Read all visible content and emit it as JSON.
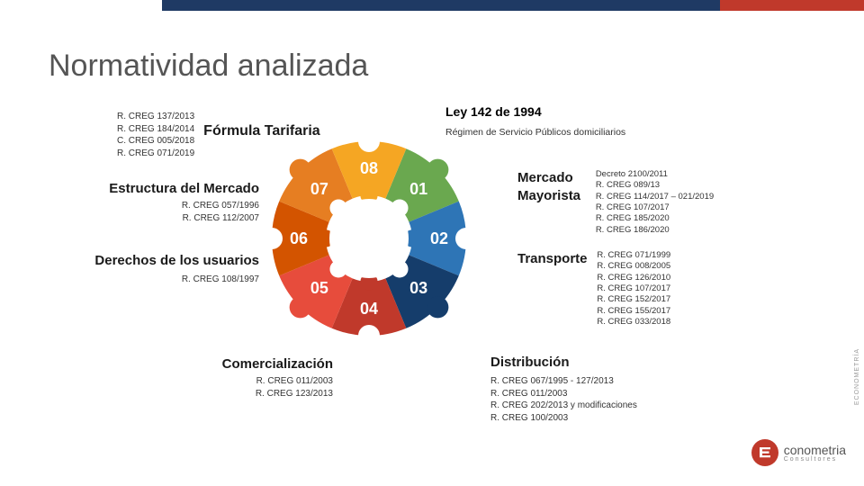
{
  "title": "Normatividad analizada",
  "topbar": {
    "navy": "#1f3a64",
    "red": "#c0392b"
  },
  "segments": {
    "s01": {
      "num": "01",
      "color": "#6aa84f",
      "title": "Ley 142 de 1994",
      "subtitle": "Régimen  de Servicio Públicos domiciliarios"
    },
    "s02": {
      "num": "02",
      "color": "#2e75b6",
      "title": "Mercado\nMayorista",
      "refs": [
        "Decreto 2100/2011",
        "R. CREG 089/13",
        "R. CREG 114/2017 – 021/2019",
        "R. CREG 107/2017",
        "R. CREG 185/2020",
        "R. CREG 186/2020"
      ]
    },
    "s03": {
      "num": "03",
      "color": "#153d6b",
      "title": "Transporte",
      "refs": [
        "R. CREG 071/1999",
        "R. CREG 008/2005",
        "R. CREG 126/2010",
        "R. CREG 107/2017",
        "R. CREG 152/2017",
        "R. CREG 155/2017",
        "R. CREG 033/2018"
      ]
    },
    "s04": {
      "num": "04",
      "color": "#c0392b",
      "title": "Distribución",
      "refs": [
        "R. CREG 067/1995 -  127/2013",
        "R. CREG 011/2003",
        "R. CREG 202/2013 y modificaciones",
        "R. CREG 100/2003"
      ]
    },
    "s05": {
      "num": "05",
      "color": "#e74c3c",
      "title": "Comercialización",
      "refs": [
        "R. CREG 011/2003",
        "R. CREG 123/2013"
      ]
    },
    "s06": {
      "num": "06",
      "color": "#d35400",
      "title": "Derechos de los usuarios",
      "refs": [
        "R. CREG 108/1997"
      ]
    },
    "s07": {
      "num": "07",
      "color": "#e67e22",
      "title": "Estructura del Mercado",
      "refs": [
        "R. CREG 057/1996",
        "R. CREG 112/2007"
      ]
    },
    "s08": {
      "num": "08",
      "color": "#f5a623",
      "title": "Fórmula Tarifaria",
      "refs": [
        "R. CREG 137/2013",
        "R. CREG 184/2014",
        "C. CREG 005/2018",
        "R. CREG 071/2019"
      ]
    }
  },
  "logo": {
    "brand": "conometria",
    "sub": "Consultores"
  },
  "sidetag": "ECONOMETRÍA",
  "donut": {
    "inner_r": 48,
    "outer_r": 108,
    "tab_r": 12
  }
}
